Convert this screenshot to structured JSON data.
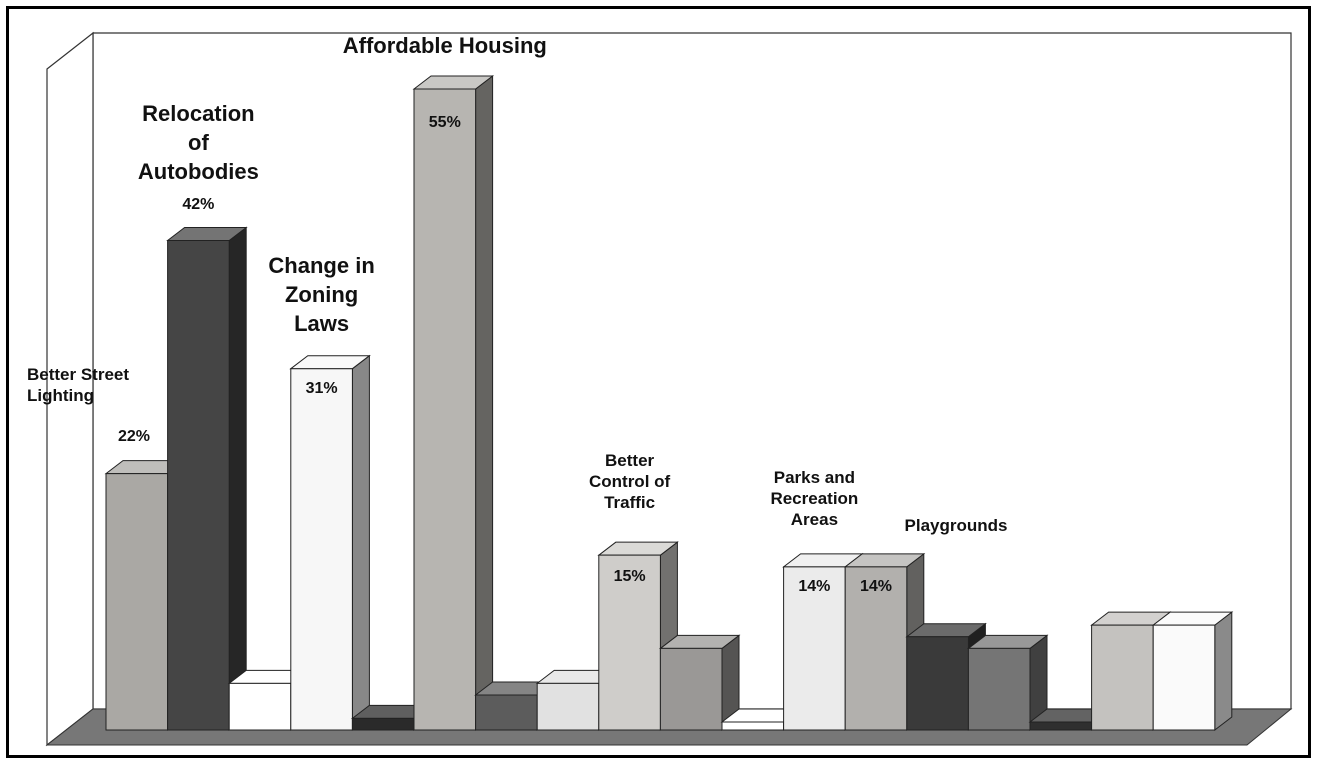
{
  "chart_data": {
    "type": "bar",
    "categories": [
      "Better Street Lighting",
      "Relocation of Autobodies",
      "",
      "Change in Zoning Laws",
      "",
      "Affordable Housing",
      "",
      "",
      "Better Control of Traffic",
      "",
      "",
      "Parks and Recreation Areas",
      "Playgrounds",
      "",
      "",
      "",
      "",
      ""
    ],
    "values": [
      22,
      42,
      4,
      31,
      1,
      55,
      3,
      4,
      15,
      7,
      0.5,
      14,
      14,
      8,
      7,
      0.5,
      9,
      9
    ],
    "data_labels": [
      "22%",
      "42%",
      "",
      "31%",
      "",
      "55%",
      "",
      "",
      "15%",
      "",
      "",
      "14%",
      "14%",
      "",
      "",
      "",
      "",
      ""
    ],
    "bar_colors": [
      "#aaa8a4",
      "#454545",
      "#ffffff",
      "#f7f7f7",
      "#2a2a2a",
      "#b7b5b1",
      "#5c5c5c",
      "#e1e1e1",
      "#cfcdca",
      "#9a9896",
      "#ffffff",
      "#ebebeb",
      "#b2b0ad",
      "#3a3a3a",
      "#757575",
      "#2f2f2f",
      "#c4c2bf",
      "#fafafa"
    ],
    "title": "",
    "xlabel": "",
    "ylabel": "",
    "ylim": [
      0,
      58
    ],
    "grid": false,
    "legend": "none",
    "three_d": true
  }
}
